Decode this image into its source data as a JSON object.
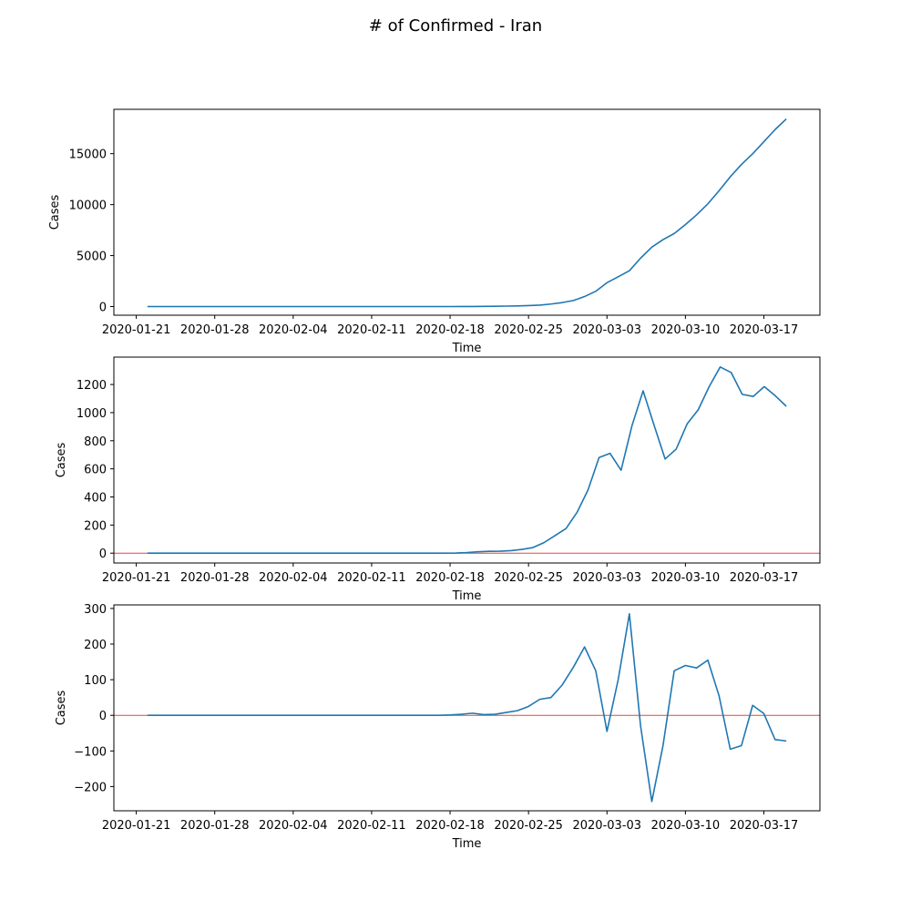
{
  "figure": {
    "title": "# of Confirmed - Iran"
  },
  "colors": {
    "line": "#1f77b4",
    "zero_line": "#e8473c",
    "axes": "#000000"
  },
  "chart_data": [
    {
      "type": "line",
      "xlabel": "Time",
      "ylabel": "Cases",
      "x_start": "2020-01-22",
      "x": [
        "2020-01-22",
        "2020-01-23",
        "2020-01-24",
        "2020-01-25",
        "2020-01-26",
        "2020-01-27",
        "2020-01-28",
        "2020-01-29",
        "2020-01-30",
        "2020-01-31",
        "2020-02-01",
        "2020-02-02",
        "2020-02-03",
        "2020-02-04",
        "2020-02-05",
        "2020-02-06",
        "2020-02-07",
        "2020-02-08",
        "2020-02-09",
        "2020-02-10",
        "2020-02-11",
        "2020-02-12",
        "2020-02-13",
        "2020-02-14",
        "2020-02-15",
        "2020-02-16",
        "2020-02-17",
        "2020-02-18",
        "2020-02-19",
        "2020-02-20",
        "2020-02-21",
        "2020-02-22",
        "2020-02-23",
        "2020-02-24",
        "2020-02-25",
        "2020-02-26",
        "2020-02-27",
        "2020-02-28",
        "2020-02-29",
        "2020-03-01",
        "2020-03-02",
        "2020-03-03",
        "2020-03-04",
        "2020-03-05",
        "2020-03-06",
        "2020-03-07",
        "2020-03-08",
        "2020-03-09",
        "2020-03-10",
        "2020-03-11",
        "2020-03-12",
        "2020-03-13",
        "2020-03-14",
        "2020-03-15",
        "2020-03-16",
        "2020-03-17",
        "2020-03-18",
        "2020-03-19"
      ],
      "values": [
        0,
        0,
        0,
        0,
        0,
        0,
        0,
        0,
        0,
        0,
        0,
        0,
        0,
        0,
        0,
        0,
        0,
        0,
        0,
        0,
        0,
        0,
        0,
        0,
        0,
        0,
        0,
        0,
        2,
        5,
        18,
        28,
        43,
        61,
        95,
        139,
        245,
        388,
        593,
        978,
        1501,
        2336,
        2922,
        3513,
        4747,
        5823,
        6566,
        7161,
        8042,
        9000,
        10075,
        11364,
        12729,
        13938,
        14991,
        16169,
        17361,
        18407
      ],
      "xticks": [
        "2020-01-21",
        "2020-01-28",
        "2020-02-04",
        "2020-02-11",
        "2020-02-18",
        "2020-02-25",
        "2020-03-03",
        "2020-03-10",
        "2020-03-17"
      ],
      "yticks": [
        0,
        5000,
        10000,
        15000
      ],
      "xlim": [
        "2020-01-19",
        "2020-03-22"
      ],
      "ylim": [
        -850,
        19350
      ],
      "zero_line": false
    },
    {
      "type": "line",
      "xlabel": "Time",
      "ylabel": "Cases",
      "values": [
        0,
        0,
        0,
        0,
        0,
        0,
        0,
        0,
        0,
        0,
        0,
        0,
        0,
        0,
        0,
        0,
        0,
        0,
        0,
        0,
        0,
        0,
        0,
        0,
        0,
        0,
        0,
        0,
        1,
        4,
        10,
        13,
        14,
        18,
        27,
        40,
        75,
        125,
        175,
        290,
        450,
        680,
        710,
        590,
        910,
        1155,
        910,
        670,
        740,
        920,
        1020,
        1185,
        1325,
        1285,
        1130,
        1115,
        1185,
        1120,
        1045
      ],
      "xticks": [
        "2020-01-21",
        "2020-01-28",
        "2020-02-04",
        "2020-02-11",
        "2020-02-18",
        "2020-02-25",
        "2020-03-03",
        "2020-03-10",
        "2020-03-17"
      ],
      "yticks": [
        0,
        200,
        400,
        600,
        800,
        1000,
        1200
      ],
      "xlim": [
        "2020-01-19",
        "2020-03-22"
      ],
      "ylim": [
        -70,
        1395
      ],
      "zero_line": true
    },
    {
      "type": "line",
      "xlabel": "Time",
      "ylabel": "Cases",
      "values": [
        0,
        0,
        0,
        0,
        0,
        0,
        0,
        0,
        0,
        0,
        0,
        0,
        0,
        0,
        0,
        0,
        0,
        0,
        0,
        0,
        0,
        0,
        0,
        0,
        0,
        0,
        0,
        1,
        3,
        6,
        2,
        3,
        8,
        13,
        25,
        45,
        50,
        85,
        135,
        192,
        125,
        -45,
        100,
        285,
        -30,
        -242,
        -85,
        125,
        140,
        133,
        155,
        55,
        -95,
        -85,
        28,
        5,
        -68,
        -72
      ],
      "xticks": [
        "2020-01-21",
        "2020-01-28",
        "2020-02-04",
        "2020-02-11",
        "2020-02-18",
        "2020-02-25",
        "2020-03-03",
        "2020-03-10",
        "2020-03-17"
      ],
      "yticks": [
        -200,
        -100,
        0,
        100,
        200,
        300
      ],
      "xlim": [
        "2020-01-19",
        "2020-03-22"
      ],
      "ylim": [
        -268,
        310
      ],
      "zero_line": true
    }
  ]
}
